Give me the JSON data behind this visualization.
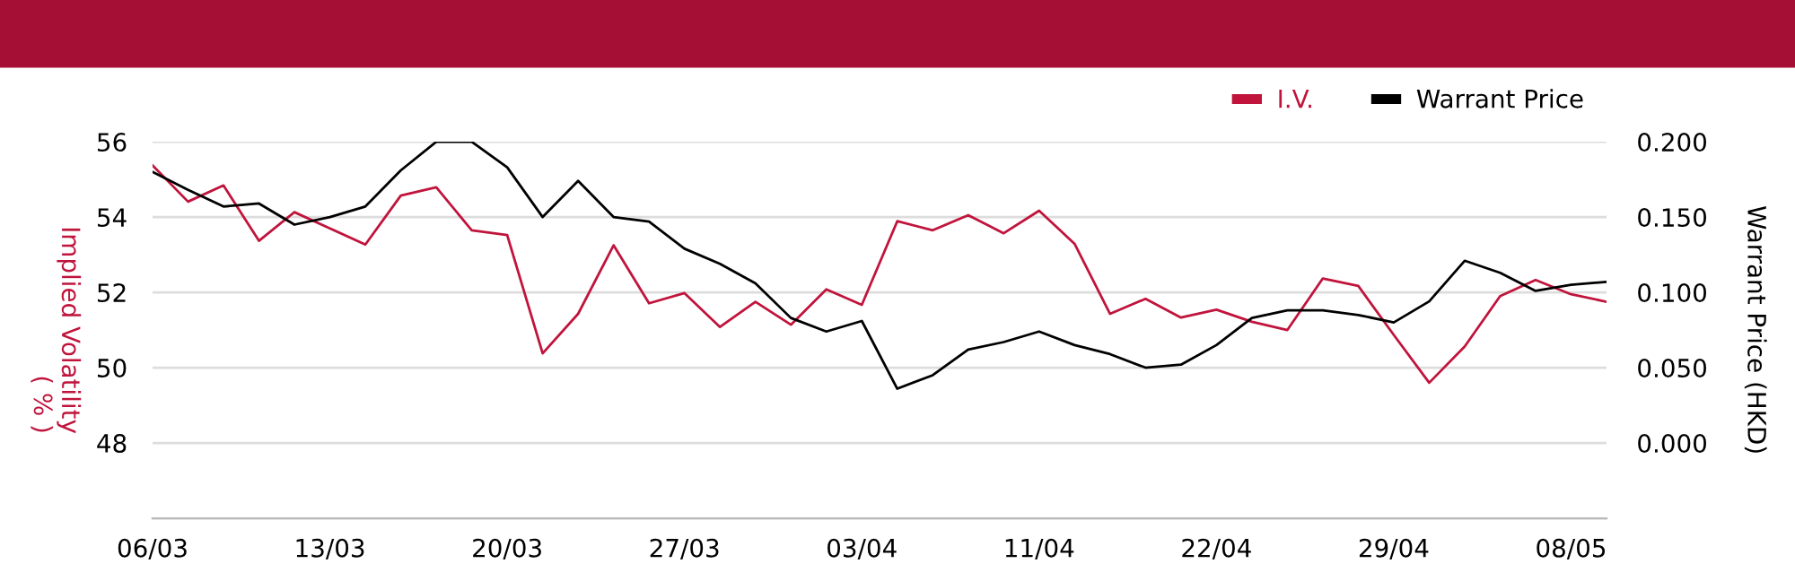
{
  "chart_data": {
    "type": "line",
    "categories": [
      "06/03",
      null,
      null,
      null,
      null,
      "13/03",
      null,
      null,
      null,
      null,
      "20/03",
      null,
      null,
      null,
      null,
      "27/03",
      null,
      null,
      null,
      null,
      "03/04",
      null,
      null,
      null,
      null,
      "11/04",
      null,
      null,
      null,
      null,
      "22/04",
      null,
      null,
      null,
      null,
      "29/04",
      null,
      null,
      null,
      null,
      "08/05",
      null
    ],
    "series": [
      {
        "name": "I.V.",
        "color": "#c0143c",
        "values": [
          55.37,
          54.41,
          54.84,
          53.37,
          54.13,
          53.7,
          53.27,
          54.57,
          54.79,
          53.65,
          53.52,
          50.38,
          51.43,
          53.25,
          51.71,
          51.98,
          51.08,
          51.75,
          51.14,
          52.08,
          51.67,
          53.89,
          53.65,
          54.05,
          53.57,
          54.17,
          53.29,
          51.43,
          51.83,
          51.33,
          51.54,
          51.22,
          51.0,
          52.37,
          52.17,
          50.87,
          49.6,
          50.56,
          51.9,
          52.33,
          51.95,
          51.75
        ]
      },
      {
        "name": "Warrant Price",
        "color": "#000000",
        "axis": "y2",
        "values": [
          0.18,
          0.168,
          0.157,
          0.159,
          0.145,
          0.15,
          0.157,
          0.181,
          0.2,
          0.2,
          0.183,
          0.15,
          0.174,
          0.15,
          0.147,
          0.129,
          0.119,
          0.106,
          0.083,
          0.074,
          0.081,
          0.036,
          0.045,
          0.062,
          0.067,
          0.074,
          0.065,
          0.059,
          0.05,
          0.052,
          0.065,
          0.083,
          0.088,
          0.088,
          0.085,
          0.08,
          0.094,
          0.121,
          0.113,
          0.101,
          0.105,
          0.107
        ]
      }
    ],
    "ylabel": "Implied Volatility\n( % )",
    "y2label": "Warrant Price (HKD)",
    "ylim": [
      46,
      56
    ],
    "yticks": [
      48,
      50,
      52,
      54,
      56
    ],
    "y2lim": [
      -0.05,
      0.2
    ],
    "y2ticks": [
      {
        "value": 0.0,
        "label": "0.000"
      },
      {
        "value": 0.05,
        "label": "0.050"
      },
      {
        "value": 0.1,
        "label": "0.100"
      },
      {
        "value": 0.15,
        "label": "0.150"
      },
      {
        "value": 0.2,
        "label": "0.200"
      }
    ],
    "grid": "y",
    "legend": "top right",
    "marker": "none",
    "line_style": "solid"
  }
}
